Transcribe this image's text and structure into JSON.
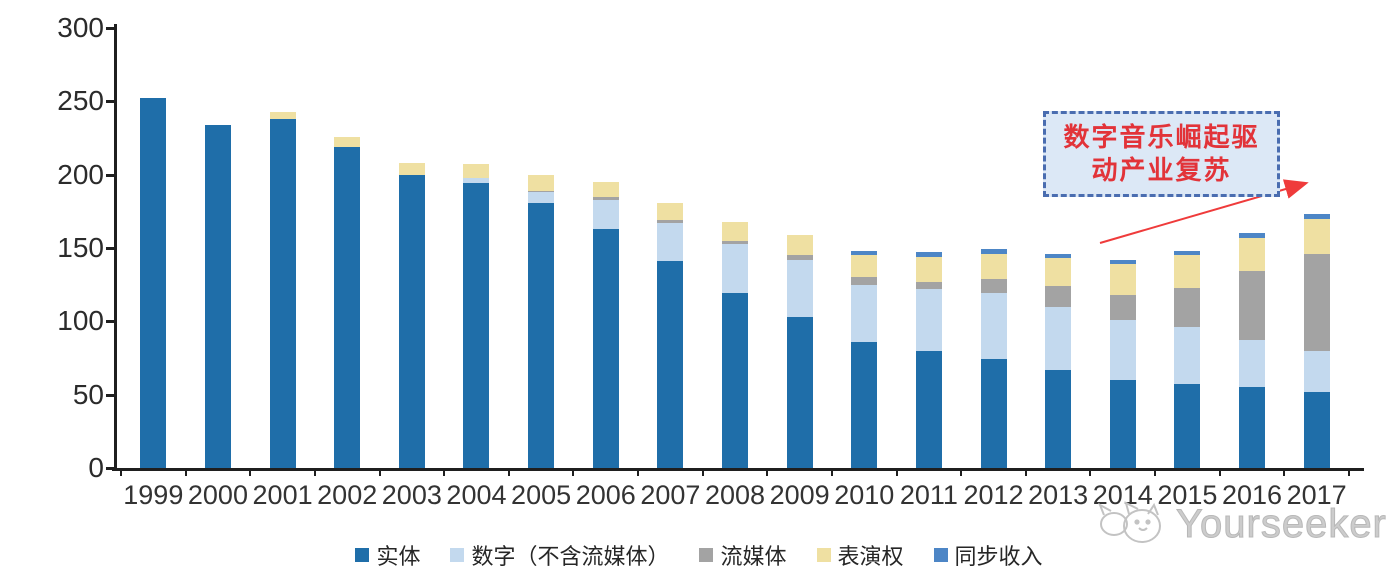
{
  "chart_data": {
    "type": "bar",
    "stacked": true,
    "title": "",
    "xlabel": "",
    "ylabel": "",
    "ylim": [
      0,
      300
    ],
    "yticks": [
      0,
      50,
      100,
      150,
      200,
      250,
      300
    ],
    "grid": false,
    "legend_position": "bottom",
    "categories": [
      "1999",
      "2000",
      "2001",
      "2002",
      "2003",
      "2004",
      "2005",
      "2006",
      "2007",
      "2008",
      "2009",
      "2010",
      "2011",
      "2012",
      "2013",
      "2014",
      "2015",
      "2016",
      "2017"
    ],
    "series": [
      {
        "name": "实体",
        "color": "#1f6ea9",
        "values": [
          252,
          234,
          238,
          219,
          200,
          194,
          181,
          163,
          141,
          119,
          103,
          86,
          80,
          74,
          67,
          60,
          57,
          55,
          52
        ]
      },
      {
        "name": "数字（不含流媒体）",
        "color": "#c3d9ee",
        "values": [
          0,
          0,
          0,
          0,
          0,
          4,
          7,
          20,
          26,
          34,
          39,
          39,
          42,
          45,
          43,
          41,
          39,
          32,
          28
        ]
      },
      {
        "name": "流媒体",
        "color": "#a3a3a3",
        "values": [
          0,
          0,
          0,
          0,
          0,
          0,
          1,
          2,
          2,
          2,
          3,
          5,
          5,
          10,
          14,
          17,
          27,
          47,
          66
        ]
      },
      {
        "name": "表演权",
        "color": "#efe0a2",
        "values": [
          0,
          0,
          5,
          7,
          8,
          9,
          11,
          10,
          12,
          13,
          14,
          15,
          17,
          17,
          19,
          21,
          22,
          23,
          24
        ]
      },
      {
        "name": "同步收入",
        "color": "#4d86c6",
        "values": [
          0,
          0,
          0,
          0,
          0,
          0,
          0,
          0,
          0,
          0,
          0,
          3,
          3,
          3,
          3,
          3,
          3,
          3,
          3
        ]
      }
    ]
  },
  "annotation": {
    "line1": "数字音乐崛起驱",
    "line2": "动产业复苏",
    "box_fill": "#dce8f6",
    "border_color": "#4a6db0",
    "text_color": "#e23339",
    "arrow_color": "#ef3b3b"
  },
  "watermark": {
    "label": "Yourseeker",
    "icon": "cat-doodle-icon",
    "color": "#c6c6c6"
  }
}
